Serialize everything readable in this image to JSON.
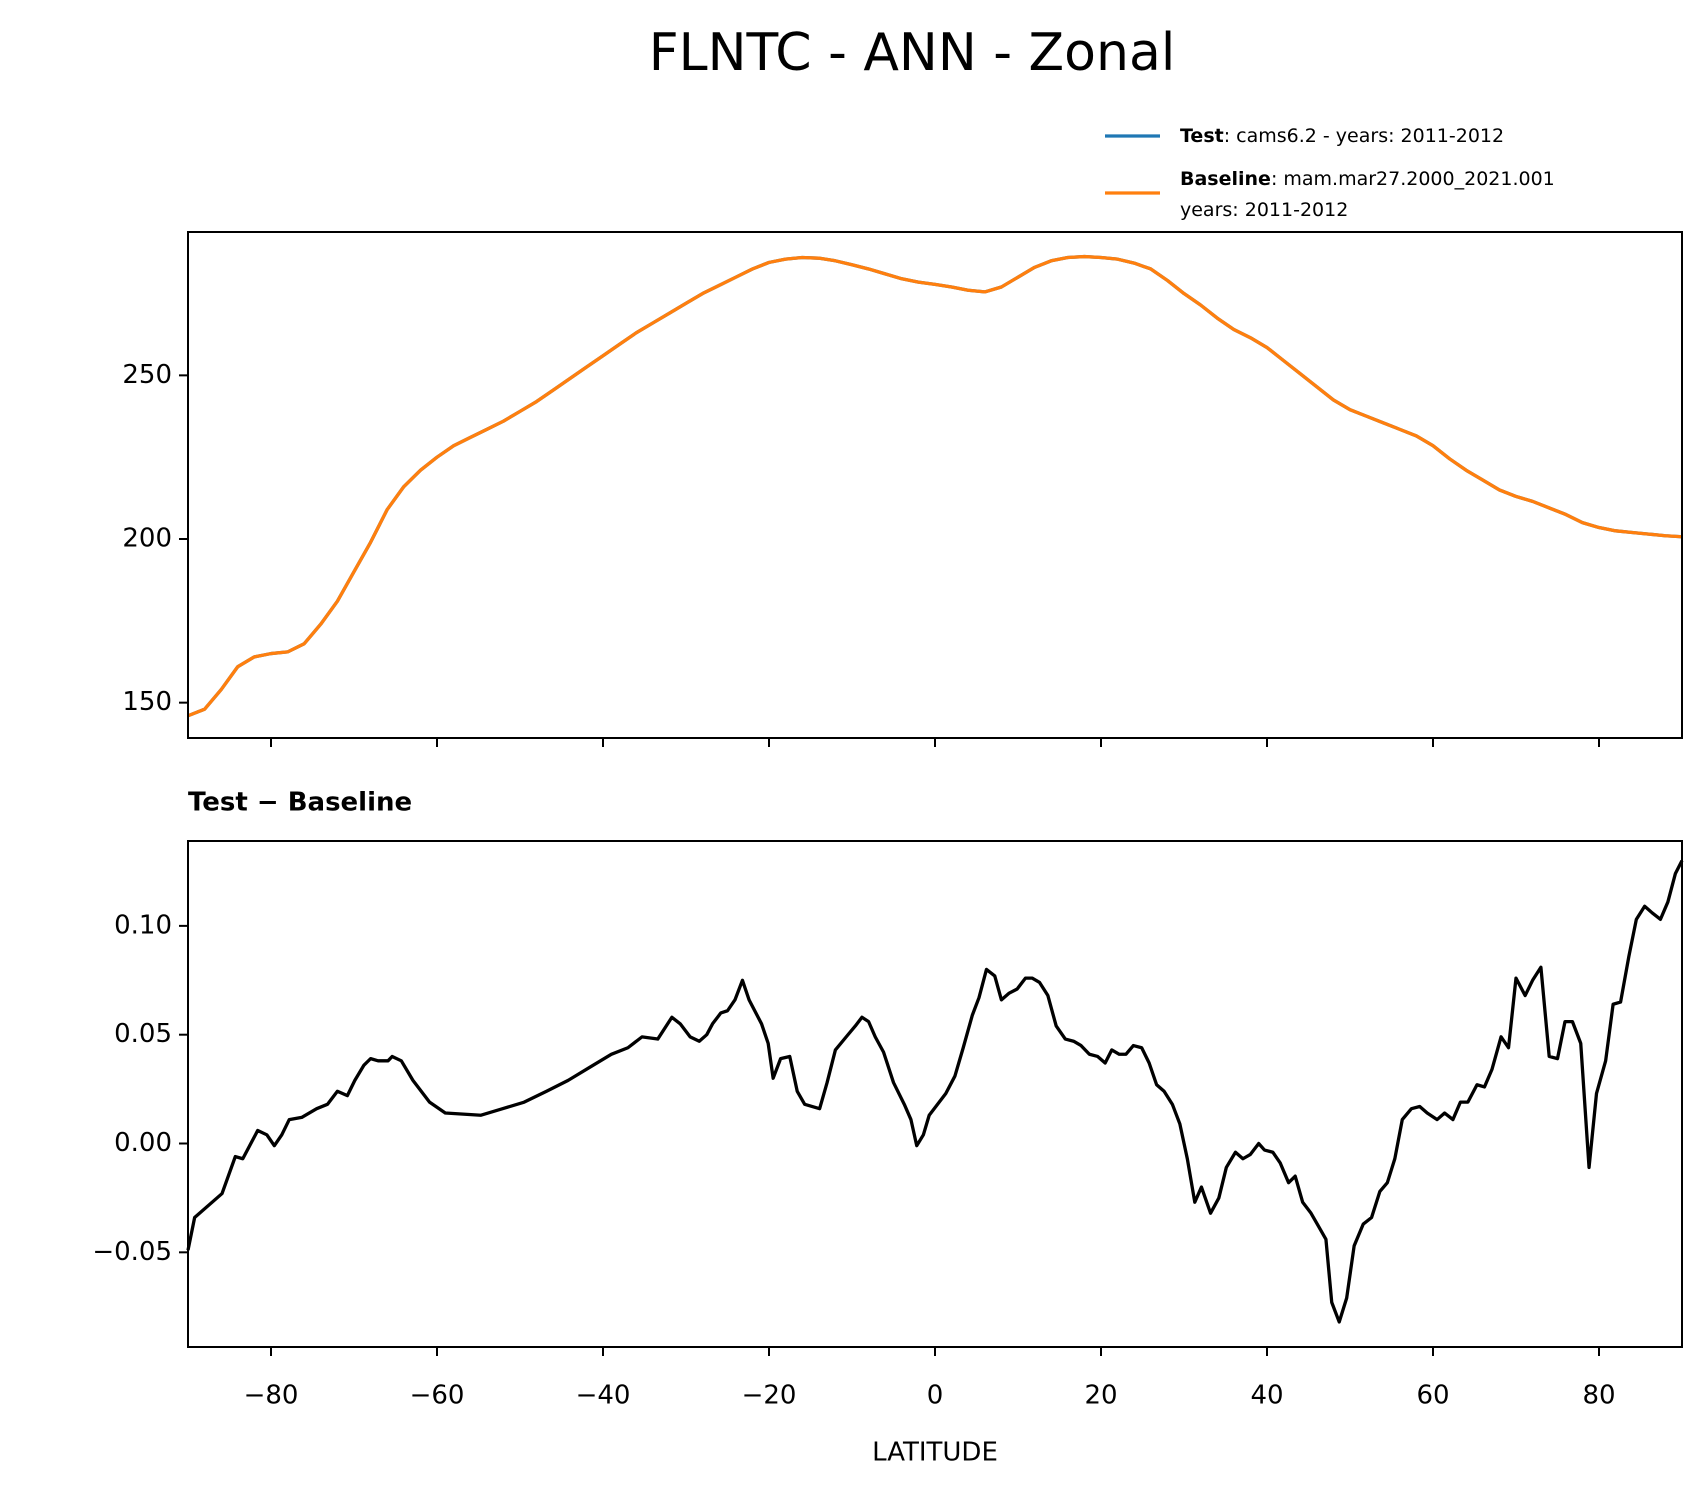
{
  "title": "FLNTC - ANN - Zonal",
  "chart_data": [
    {
      "type": "line",
      "x": [
        -90,
        -88,
        -86,
        -84,
        -82,
        -80,
        -78,
        -76,
        -74,
        -72,
        -70,
        -68,
        -66,
        -64,
        -62,
        -60,
        -58,
        -56,
        -54,
        -52,
        -50,
        -48,
        -46,
        -44,
        -42,
        -40,
        -38,
        -36,
        -34,
        -32,
        -30,
        -28,
        -26,
        -24,
        -22,
        -20,
        -18,
        -16,
        -14,
        -12,
        -10,
        -8,
        -6,
        -4,
        -2,
        0,
        2,
        4,
        6,
        8,
        10,
        12,
        14,
        16,
        18,
        20,
        22,
        24,
        26,
        28,
        30,
        32,
        34,
        36,
        38,
        40,
        42,
        44,
        46,
        48,
        50,
        52,
        54,
        56,
        58,
        60,
        62,
        64,
        66,
        68,
        70,
        72,
        74,
        76,
        78,
        80,
        82,
        84,
        86,
        88,
        90
      ],
      "series": [
        {
          "name": "Test",
          "detail": [
            ": cams6.2 - years: 2011-2012"
          ],
          "color": "#1f77b4",
          "values": [
            146,
            148,
            154,
            161,
            164,
            165,
            165.5,
            168,
            174,
            181,
            190,
            199,
            209,
            216,
            221,
            225,
            228.5,
            231,
            233.5,
            236,
            239,
            242,
            245.5,
            249,
            252.5,
            256,
            259.5,
            263,
            266,
            269,
            272,
            275,
            277.5,
            280,
            282.5,
            284.5,
            285.5,
            286,
            285.8,
            285,
            283.8,
            282.5,
            281,
            279.5,
            278.5,
            277.8,
            277,
            276,
            275.5,
            277,
            280,
            283,
            285,
            286,
            286.3,
            286,
            285.5,
            284.3,
            282.5,
            279,
            275,
            271.5,
            267.5,
            264,
            261.5,
            258.5,
            254.5,
            250.5,
            246.5,
            242.5,
            239.5,
            237.5,
            235.5,
            233.5,
            231.5,
            228.5,
            224.5,
            221,
            218,
            215,
            213,
            211.5,
            209.5,
            207.5,
            205,
            203.5,
            202.5,
            202,
            201.5,
            201,
            200.7
          ]
        },
        {
          "name": "Baseline",
          "detail": [
            ": mam.mar27.2000_2021.001",
            "years: 2011-2012"
          ],
          "color": "#ff7f0e",
          "values": [
            146,
            148,
            154,
            161,
            164,
            165,
            165.5,
            168,
            174,
            181,
            190,
            199,
            209,
            216,
            221,
            225,
            228.5,
            231,
            233.5,
            236,
            239,
            242,
            245.5,
            249,
            252.5,
            256,
            259.5,
            263,
            266,
            269,
            272,
            275,
            277.5,
            280,
            282.5,
            284.5,
            285.5,
            286,
            285.8,
            285,
            283.8,
            282.5,
            281,
            279.5,
            278.5,
            277.8,
            277,
            276,
            275.5,
            277,
            280,
            283,
            285,
            286,
            286.3,
            286,
            285.5,
            284.3,
            282.5,
            279,
            275,
            271.5,
            267.5,
            264,
            261.5,
            258.5,
            254.5,
            250.5,
            246.5,
            242.5,
            239.5,
            237.5,
            235.5,
            233.5,
            231.5,
            228.5,
            224.5,
            221,
            218,
            215,
            213,
            211.5,
            209.5,
            207.5,
            205,
            203.5,
            202.5,
            202,
            201.5,
            201,
            200.7
          ]
        }
      ],
      "xlim": [
        -90,
        90
      ],
      "ylim": [
        139.2,
        293.8
      ],
      "xticks": [
        -80,
        -60,
        -40,
        -20,
        0,
        20,
        40,
        60,
        80
      ],
      "xtick_labels": false,
      "yticks": [
        150,
        200,
        250
      ]
    },
    {
      "type": "line",
      "title": "Test − Baseline",
      "xlabel": "LATITUDE",
      "color": "#000000",
      "x": [
        -90,
        -89.2,
        -85.9,
        -84.3,
        -83.4,
        -81.6,
        -80.5,
        -79.6,
        -78.7,
        -77.8,
        -76.3,
        -74.5,
        -73.2,
        -72,
        -70.8,
        -69.9,
        -68.8,
        -68,
        -67.1,
        -65.9,
        -65.4,
        -64.3,
        -62.9,
        -60.9,
        -59,
        -54.7,
        -52.1,
        -49.5,
        -46.8,
        -44.2,
        -41.6,
        -39,
        -37,
        -35.3,
        -33.4,
        -31.7,
        -30.7,
        -29.5,
        -28.4,
        -27.5,
        -26.8,
        -25.8,
        -25,
        -24.1,
        -23.2,
        -22.4,
        -20.9,
        -20.1,
        -19.5,
        -18.6,
        -17.5,
        -16.6,
        -15.7,
        -13.9,
        -13,
        -12,
        -10.7,
        -9.6,
        -8.8,
        -8,
        -7.2,
        -6.2,
        -5,
        -3.7,
        -2.9,
        -2.2,
        -1.4,
        -0.7,
        0.3,
        1.3,
        2.4,
        3.4,
        4.5,
        5.3,
        6.2,
        7.2,
        8,
        8.9,
        9.9,
        10.9,
        11.7,
        12.6,
        13.6,
        14.6,
        15.7,
        16.7,
        17.6,
        18.6,
        19.6,
        20.5,
        21.3,
        22.2,
        23,
        23.9,
        24.9,
        25.8,
        26.7,
        27.6,
        28.6,
        29.5,
        30.4,
        31.3,
        32.1,
        33.2,
        34.2,
        35.1,
        36.2,
        37.1,
        38,
        39,
        39.7,
        40.7,
        41.6,
        42.6,
        43.4,
        44.3,
        45.3,
        46.2,
        47.1,
        47.8,
        48.7,
        49.6,
        50.5,
        51.6,
        52.6,
        53.6,
        54.5,
        55.4,
        56.3,
        57.4,
        58.4,
        59.3,
        60.5,
        61.4,
        62.4,
        63.3,
        64.2,
        65.3,
        66.2,
        67.1,
        68.2,
        69.1,
        70,
        71.1,
        72,
        73,
        74,
        75,
        75.9,
        76.8,
        77.8,
        78.8,
        79.7,
        80.8,
        81.7,
        82.6,
        83.6,
        84.5,
        85.5,
        86.4,
        87.4,
        88.3,
        89.2,
        90
      ],
      "values": [
        -0.049,
        -0.034,
        -0.023,
        -0.006,
        -0.007,
        0.006,
        0.004,
        -0.001,
        0.004,
        0.011,
        0.012,
        0.016,
        0.018,
        0.024,
        0.022,
        0.029,
        0.036,
        0.039,
        0.038,
        0.038,
        0.04,
        0.038,
        0.029,
        0.019,
        0.014,
        0.013,
        0.016,
        0.019,
        0.024,
        0.029,
        0.035,
        0.041,
        0.044,
        0.049,
        0.048,
        0.058,
        0.055,
        0.049,
        0.047,
        0.05,
        0.055,
        0.06,
        0.061,
        0.066,
        0.075,
        0.066,
        0.055,
        0.046,
        0.03,
        0.039,
        0.04,
        0.024,
        0.018,
        0.016,
        0.028,
        0.043,
        0.049,
        0.054,
        0.058,
        0.056,
        0.049,
        0.042,
        0.028,
        0.018,
        0.011,
        -0.001,
        0.004,
        0.013,
        0.018,
        0.023,
        0.031,
        0.044,
        0.059,
        0.067,
        0.08,
        0.077,
        0.066,
        0.069,
        0.071,
        0.076,
        0.076,
        0.074,
        0.068,
        0.054,
        0.048,
        0.047,
        0.045,
        0.041,
        0.04,
        0.037,
        0.043,
        0.041,
        0.041,
        0.045,
        0.044,
        0.037,
        0.027,
        0.024,
        0.018,
        0.009,
        -0.007,
        -0.027,
        -0.02,
        -0.032,
        -0.025,
        -0.011,
        -0.004,
        -0.007,
        -0.005,
        0,
        -0.003,
        -0.004,
        -0.009,
        -0.018,
        -0.015,
        -0.027,
        -0.032,
        -0.038,
        -0.044,
        -0.073,
        -0.082,
        -0.071,
        -0.047,
        -0.037,
        -0.034,
        -0.022,
        -0.018,
        -0.007,
        0.011,
        0.016,
        0.017,
        0.014,
        0.011,
        0.014,
        0.011,
        0.019,
        0.019,
        0.027,
        0.026,
        0.034,
        0.049,
        0.044,
        0.076,
        0.068,
        0.075,
        0.081,
        0.04,
        0.039,
        0.056,
        0.056,
        0.046,
        -0.011,
        0.023,
        0.038,
        0.064,
        0.065,
        0.086,
        0.103,
        0.109,
        0.106,
        0.103,
        0.111,
        0.124,
        0.13
      ],
      "xlim": [
        -90,
        90
      ],
      "ylim": [
        -0.0935,
        0.139
      ],
      "xticks": [
        {
          "value": -80,
          "label": "−80"
        },
        {
          "value": -60,
          "label": "−60"
        },
        {
          "value": -40,
          "label": "−40"
        },
        {
          "value": -20,
          "label": "−20"
        },
        0,
        20,
        40,
        60,
        80
      ],
      "yticks": [
        {
          "value": -0.05,
          "label": "−0.05"
        },
        {
          "value": 0,
          "label": "0.00"
        },
        {
          "value": 0.05,
          "label": "0.05"
        },
        {
          "value": 0.1,
          "label": "0.10"
        }
      ]
    }
  ]
}
